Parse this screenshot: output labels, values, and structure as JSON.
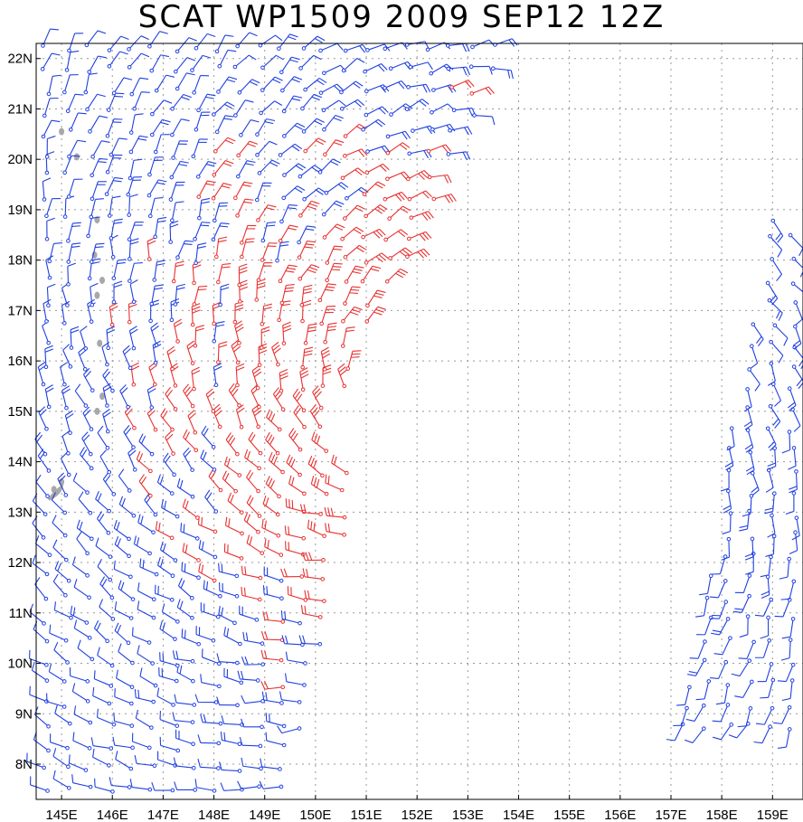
{
  "title": "SCAT WP1509 2009 SEP12 12Z",
  "map": {
    "lon_range": [
      144.5,
      159.6
    ],
    "lat_range": [
      7.3,
      22.3
    ],
    "x_ticks": [
      "145E",
      "146E",
      "147E",
      "148E",
      "149E",
      "150E",
      "151E",
      "152E",
      "153E",
      "154E",
      "155E",
      "156E",
      "157E",
      "158E",
      "159E"
    ],
    "y_ticks": [
      "8N",
      "9N",
      "10N",
      "11N",
      "12N",
      "13N",
      "14N",
      "15N",
      "16N",
      "17N",
      "18N",
      "19N",
      "20N",
      "21N",
      "22N"
    ],
    "grid": true
  },
  "legend_colors": {
    "lower_speed": "#2040e0",
    "higher_speed": "#e83030",
    "land": "#a8a8a8"
  },
  "swaths": [
    {
      "name": "western-swath",
      "lat_min": 7.4,
      "lat_max": 22.3
    },
    {
      "name": "eastern-swath",
      "lat_min": 8.5,
      "lat_max": 18.8
    }
  ]
}
